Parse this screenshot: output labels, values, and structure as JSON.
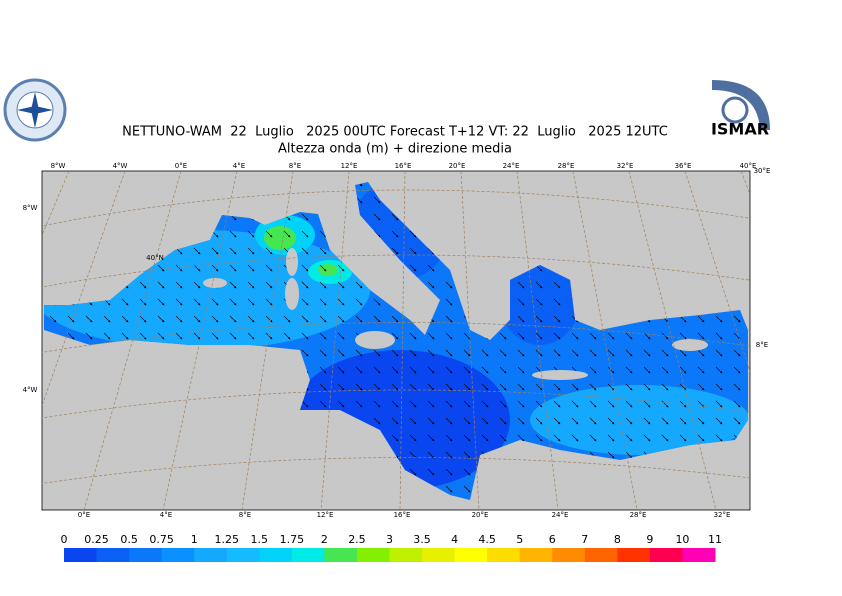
{
  "header": {
    "title": "NETTUNO-WAM  22  Luglio   2025 00UTC Forecast T+12 VT: 22  Luglio   2025 12UTC",
    "subtitle": "Altezza onda (m) + direzione media",
    "logo_right": "ISMAR"
  },
  "graticule": {
    "top": [
      "8°W",
      "4°W",
      "0°E",
      "4°E",
      "8°E",
      "12°E",
      "16°E",
      "20°E",
      "24°E",
      "28°E",
      "32°E",
      "36°E",
      "40°E"
    ],
    "bottom": [
      "0°E",
      "4°E",
      "8°E",
      "12°E",
      "16°E",
      "20°E",
      "24°E",
      "28°E",
      "32°E"
    ],
    "left": [
      "8°W",
      "40°N",
      "4°W"
    ],
    "right": [
      "30°E",
      "8°E"
    ]
  },
  "legend": {
    "levels": [
      0,
      0.25,
      0.5,
      0.75,
      1,
      1.25,
      1.5,
      1.75,
      2,
      2.5,
      3,
      3.5,
      4,
      4.5,
      5,
      6,
      7,
      8,
      9,
      10,
      11
    ],
    "colors": [
      "#0a46f0",
      "#0a5ff5",
      "#0a78f8",
      "#0a91ff",
      "#14a8ff",
      "#14bcff",
      "#00d2fa",
      "#00ebe6",
      "#46e650",
      "#82f000",
      "#beF000",
      "#e6f000",
      "#ffff00",
      "#ffdc00",
      "#ffb400",
      "#ff8c00",
      "#ff6400",
      "#ff3200",
      "#ff0050",
      "#ff00b4"
    ]
  }
}
